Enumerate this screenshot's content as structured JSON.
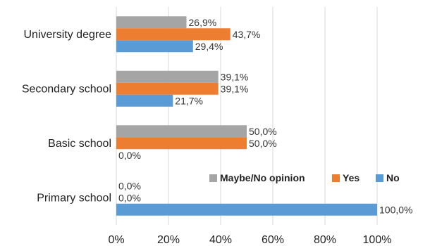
{
  "chart_data": {
    "type": "bar",
    "orientation": "horizontal",
    "categories": [
      "University degree",
      "Secondary school",
      "Basic school",
      "Primary school"
    ],
    "series": [
      {
        "name": "Maybe/No opinion",
        "color": "#a5a5a5",
        "values": [
          26.9,
          39.1,
          50.0,
          0.0
        ],
        "labels": [
          "26,9%",
          "39,1%",
          "50,0%",
          "0,0%"
        ]
      },
      {
        "name": "Yes",
        "color": "#ed7d31",
        "values": [
          43.7,
          39.1,
          50.0,
          0.0
        ],
        "labels": [
          "43,7%",
          "39,1%",
          "50,0%",
          "0,0%"
        ]
      },
      {
        "name": "No",
        "color": "#5b9bd5",
        "values": [
          29.4,
          21.7,
          0.0,
          100.0
        ],
        "labels": [
          "29,4%",
          "21,7%",
          "0,0%",
          "100,0%"
        ]
      }
    ],
    "xlim": [
      0,
      100
    ],
    "xticks": [
      "0%",
      "20%",
      "40%",
      "60%",
      "80%",
      "100%"
    ],
    "grid": true,
    "legend_position": "inside-right"
  }
}
